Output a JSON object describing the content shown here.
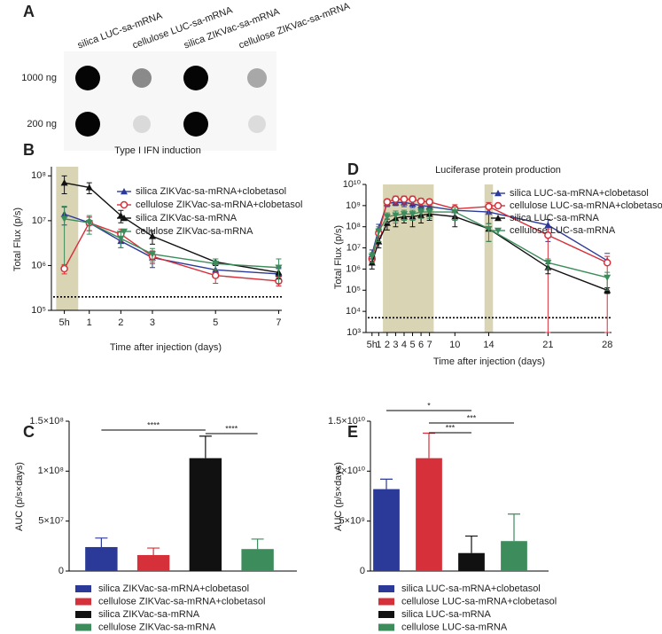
{
  "blot": {
    "panel": "A",
    "columns": [
      "silica LUC-sa-mRNA",
      "cellulose LUC-sa-mRNA",
      "silica ZIKVac-sa-mRNA",
      "cellulose ZIKVac-sa-mRNA"
    ],
    "rows": [
      "1000 ng",
      "200 ng"
    ]
  },
  "chart_data": [
    {
      "type": "line",
      "panel": "B",
      "title": "Type I IFN induction",
      "xlabel": "Time after injection (days)",
      "ylabel": "Total Flux (p/s)",
      "ylog": true,
      "x": [
        0.21,
        1,
        2,
        3,
        5,
        7
      ],
      "xlim": [
        -0.2,
        7.1
      ],
      "xticks": [
        {
          "value": 0.21,
          "label": "5h"
        },
        1,
        2,
        3,
        5,
        7
      ],
      "ylim": [
        100000,
        160000000
      ],
      "yticks": [
        {
          "value": 100000,
          "label": "10⁵"
        },
        {
          "value": 1000000,
          "label": "10⁶"
        },
        {
          "value": 10000000,
          "label": "10⁷"
        },
        {
          "value": 100000000,
          "label": "10⁸"
        }
      ],
      "shaded": [
        [
          -0.05,
          0.65
        ]
      ],
      "threshold": 200000,
      "series": [
        {
          "name": "silica ZIKVac-sa-mRNA+clobetasol",
          "color": "#2b3a98",
          "marker": "triangle",
          "values": [
            14000000,
            9000000,
            3500000,
            1500000,
            800000,
            650000
          ],
          "errors": [
            6000000,
            3000000,
            1000000,
            600000,
            200000,
            200000
          ]
        },
        {
          "name": "cellulose ZIKVac-sa-mRNA+clobetasol",
          "color": "#d6303a",
          "marker": "circle-open",
          "values": [
            850000,
            9000000,
            5000000,
            1600000,
            600000,
            450000
          ],
          "errors": [
            200000,
            3000000,
            1500000,
            500000,
            200000,
            100000
          ]
        },
        {
          "name": "silica ZIKVac-sa-mRNA",
          "color": "#111111",
          "marker": "triangle",
          "values": [
            70000000,
            55000000,
            13000000,
            4500000,
            1200000,
            700000
          ],
          "errors": [
            30000000,
            15000000,
            4000000,
            1500000,
            200000,
            200000
          ]
        },
        {
          "name": "cellulose ZIKVac-sa-mRNA",
          "color": "#3d8c5c",
          "marker": "triangle-down",
          "values": [
            11000000,
            9000000,
            4000000,
            1800000,
            1100000,
            900000
          ],
          "errors": [
            10000000,
            4000000,
            1500000,
            600000,
            300000,
            500000
          ]
        }
      ]
    },
    {
      "type": "line",
      "panel": "D",
      "title": "Luciferase protein production",
      "xlabel": "Time after injection (days)",
      "ylabel": "Total Flux (p/s)",
      "ylog": true,
      "x": [
        0.21,
        1,
        2,
        3,
        4,
        5,
        6,
        7,
        10,
        14,
        21,
        28
      ],
      "xlim": [
        -0.5,
        28.5
      ],
      "xticks": [
        {
          "value": 0.21,
          "label": "5h"
        },
        1,
        2,
        3,
        4,
        5,
        6,
        7,
        10,
        14,
        21,
        28
      ],
      "ylim": [
        1000,
        10000000000
      ],
      "yticks": [
        {
          "value": 1000,
          "label": "10³"
        },
        {
          "value": 10000,
          "label": "10⁴"
        },
        {
          "value": 100000,
          "label": "10⁵"
        },
        {
          "value": 1000000,
          "label": "10⁶"
        },
        {
          "value": 10000000,
          "label": "10⁷"
        },
        {
          "value": 100000000,
          "label": "10⁸"
        },
        {
          "value": 1000000000,
          "label": "10⁹"
        },
        {
          "value": 10000000000,
          "label": "10¹⁰"
        }
      ],
      "shaded": [
        [
          1.5,
          7.5
        ],
        [
          13.5,
          14.5
        ]
      ],
      "threshold": 5000,
      "series": [
        {
          "name": "silica LUC-sa-mRNA+clobetasol",
          "color": "#2b3a98",
          "marker": "triangle",
          "values": [
            5000000,
            80000000,
            1300000000,
            1400000000,
            1400000000,
            1200000000,
            1000000000,
            900000000,
            600000000,
            500000000,
            120000000,
            2500000
          ],
          "errors": [
            3000000,
            50000000,
            400000000,
            400000000,
            500000000,
            400000000,
            300000000,
            300000000,
            300000000,
            400000000,
            100000000,
            3000000
          ]
        },
        {
          "name": "cellulose LUC-sa-mRNA+clobetasol",
          "color": "#d6303a",
          "marker": "circle-open",
          "values": [
            3000000,
            50000000,
            1500000000,
            2000000000,
            2000000000,
            2000000000,
            1600000000,
            1500000000,
            700000000,
            900000000,
            40000000,
            2000000
          ],
          "errors": [
            1000000,
            30000000,
            500000000,
            800000000,
            800000000,
            800000000,
            600000000,
            500000000,
            400000000,
            500000000,
            40000000,
            2000000
          ]
        },
        {
          "name": "silica LUC-sa-mRNA",
          "color": "#111111",
          "marker": "triangle",
          "values": [
            2000000,
            20000000,
            150000000,
            250000000,
            300000000,
            300000000,
            350000000,
            400000000,
            300000000,
            80000000,
            1200000,
            100000
          ],
          "errors": [
            1000000,
            10000000,
            80000000,
            150000000,
            150000000,
            200000000,
            200000000,
            200000000,
            200000000,
            60000000,
            600000,
            30000
          ]
        },
        {
          "name": "cellulose LUC-sa-mRNA",
          "color": "#3d8c5c",
          "marker": "triangle-down",
          "values": [
            4000000,
            60000000,
            300000000,
            350000000,
            400000000,
            400000000,
            500000000,
            500000000,
            500000000,
            80000000,
            2000000,
            400000
          ],
          "errors": [
            2000000,
            40000000,
            150000000,
            200000000,
            200000000,
            200000000,
            250000000,
            250000000,
            300000000,
            60000000,
            1000000,
            300000
          ]
        }
      ]
    },
    {
      "type": "bar",
      "panel": "C",
      "ylabel": "AUC (p/s×days)",
      "categories": [
        "silica ZIKVac-sa-mRNA+clobetasol",
        "cellulose ZIKVac-sa-mRNA+clobetasol",
        "silica ZIKVac-sa-mRNA",
        "cellulose ZIKVac-sa-mRNA"
      ],
      "colors": [
        "#2b3a98",
        "#d6303a",
        "#111111",
        "#3d8c5c"
      ],
      "values": [
        24000000,
        16000000,
        113000000,
        22000000
      ],
      "errors": [
        9000000,
        7000000,
        22000000,
        10000000
      ],
      "ylim": [
        0,
        150000000
      ],
      "yticks": [
        0,
        {
          "value": 50000000,
          "label": "5×10⁷"
        },
        {
          "value": 100000000,
          "label": "1×10⁸"
        },
        {
          "value": 150000000,
          "label": "1.5×10⁸"
        }
      ],
      "brackets": [
        {
          "from": 0,
          "to": 2,
          "label": "****"
        },
        {
          "from": 2,
          "to": 3,
          "label": "****"
        }
      ]
    },
    {
      "type": "bar",
      "panel": "E",
      "ylabel": "AUC (p/s×days)",
      "categories": [
        "silica LUC-sa-mRNA+clobetasol",
        "cellulose LUC-sa-mRNA+clobetasol",
        "silica LUC-sa-mRNA",
        "cellulose LUC-sa-mRNA"
      ],
      "colors": [
        "#2b3a98",
        "#d6303a",
        "#111111",
        "#3d8c5c"
      ],
      "values": [
        8200000000,
        11300000000,
        1800000000,
        3000000000
      ],
      "errors": [
        1000000000,
        2500000000,
        1700000000,
        2700000000
      ],
      "ylim": [
        0,
        15000000000
      ],
      "yticks": [
        0,
        {
          "value": 5000000000,
          "label": "5×10⁹"
        },
        {
          "value": 10000000000,
          "label": "1×10¹⁰"
        },
        {
          "value": 15000000000,
          "label": "1.5×10¹⁰"
        }
      ],
      "brackets": [
        {
          "from": 0,
          "to": 2,
          "label": "*"
        },
        {
          "from": 1,
          "to": 3,
          "label": "***"
        },
        {
          "from": 1,
          "to": 2,
          "label": "***"
        }
      ]
    }
  ]
}
